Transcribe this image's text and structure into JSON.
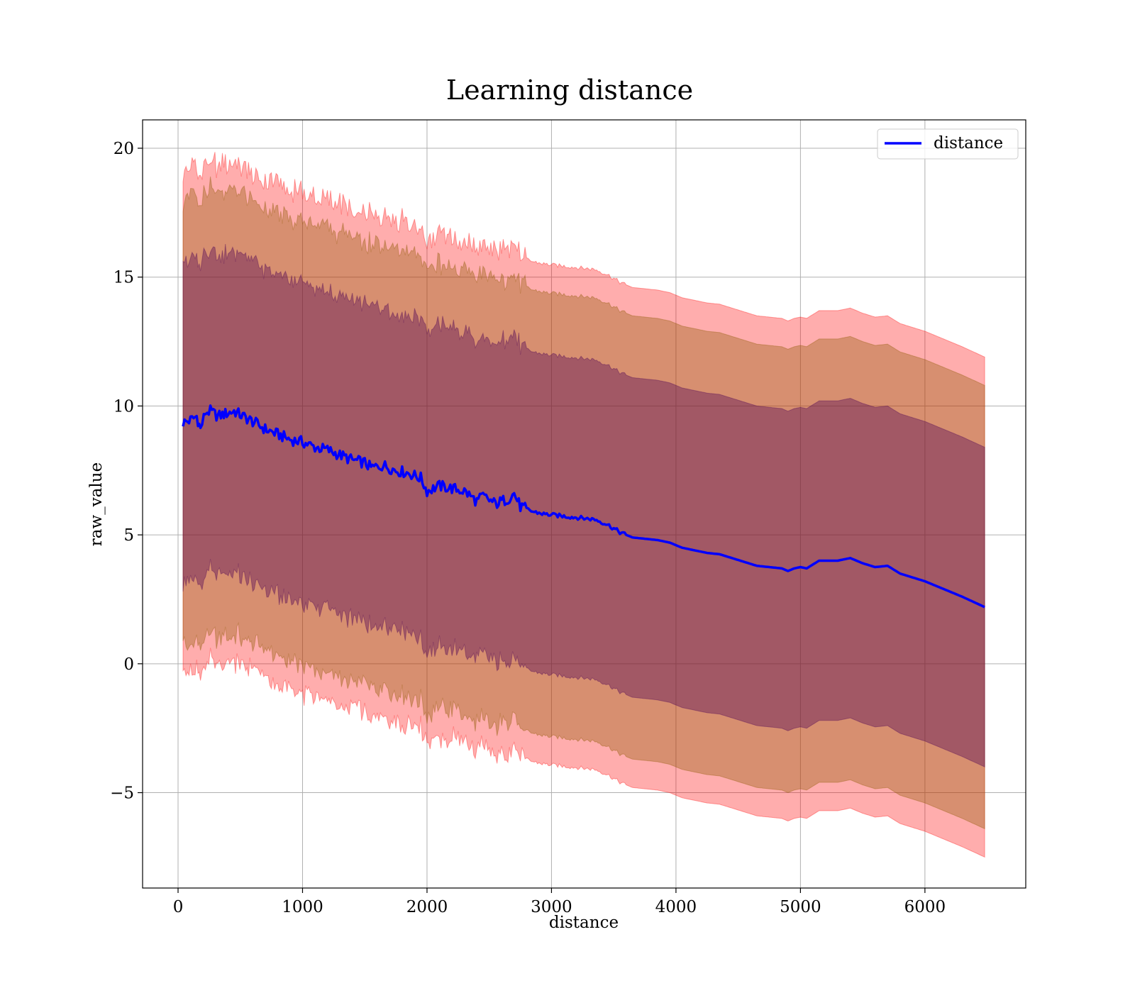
{
  "chart_data": {
    "type": "line",
    "title": "Learning distance",
    "xlabel": "distance",
    "ylabel": "raw_value",
    "xlim": [
      -285,
      6810
    ],
    "ylim": [
      -8.7,
      21.1
    ],
    "xticks": [
      0,
      1000,
      2000,
      3000,
      4000,
      5000,
      6000
    ],
    "xtick_labels": [
      "0",
      "1000",
      "2000",
      "3000",
      "4000",
      "5000",
      "6000"
    ],
    "yticks": [
      -5,
      0,
      5,
      10,
      15,
      20
    ],
    "ytick_labels": [
      "−5",
      "0",
      "5",
      "10",
      "15",
      "20"
    ],
    "grid": true,
    "legend": {
      "position": "top-right",
      "entries": [
        "distance"
      ]
    },
    "colors": {
      "line": "#0000ff",
      "band_outer": "#ff0000",
      "band_middle": "#8b5a00",
      "band_inner": "#4b0055",
      "grid": "#b0b0b0"
    },
    "series": [
      {
        "name": "distance",
        "x": [
          40,
          100,
          150,
          180,
          220,
          260,
          320,
          380,
          450,
          520,
          600,
          700,
          800,
          900,
          1000,
          1100,
          1200,
          1300,
          1400,
          1500,
          1550,
          1650,
          1750,
          1850,
          1950,
          2000,
          2100,
          2200,
          2300,
          2400,
          2450,
          2550,
          2650,
          2700,
          2750,
          2850,
          2950,
          3050,
          3150,
          3250,
          3350,
          3450,
          3550,
          3650,
          3750,
          3850,
          3950,
          4050,
          4150,
          4250,
          4350,
          4450,
          4550,
          4650,
          4750,
          4850,
          4900,
          4950,
          5000,
          5050,
          5150,
          5300,
          5400,
          5450,
          5500,
          5600,
          5700,
          5800,
          6000,
          6150,
          6300,
          6480
        ],
        "values": [
          9.35,
          9.45,
          9.6,
          9.1,
          9.75,
          9.8,
          9.6,
          9.7,
          9.8,
          9.6,
          9.4,
          9.1,
          8.9,
          8.7,
          8.6,
          8.4,
          8.3,
          8.1,
          7.9,
          7.8,
          7.6,
          7.7,
          7.5,
          7.4,
          7.2,
          6.7,
          6.9,
          6.8,
          6.7,
          6.3,
          6.5,
          6.2,
          6.4,
          6.6,
          6.1,
          5.9,
          5.8,
          5.75,
          5.7,
          5.65,
          5.6,
          5.4,
          5.1,
          4.9,
          4.85,
          4.8,
          4.7,
          4.5,
          4.4,
          4.3,
          4.25,
          4.1,
          3.95,
          3.8,
          3.75,
          3.7,
          3.6,
          3.7,
          3.75,
          3.7,
          4.0,
          4.0,
          4.1,
          4.0,
          3.9,
          3.75,
          3.8,
          3.5,
          3.2,
          2.9,
          2.6,
          2.2
        ]
      }
    ],
    "bands": [
      {
        "name": "outer",
        "half_width": 9.7,
        "noise": 0.35
      },
      {
        "name": "middle",
        "half_width": 8.6,
        "noise": 0.3
      },
      {
        "name": "inner",
        "half_width": 6.2,
        "noise": 0.25
      }
    ]
  }
}
